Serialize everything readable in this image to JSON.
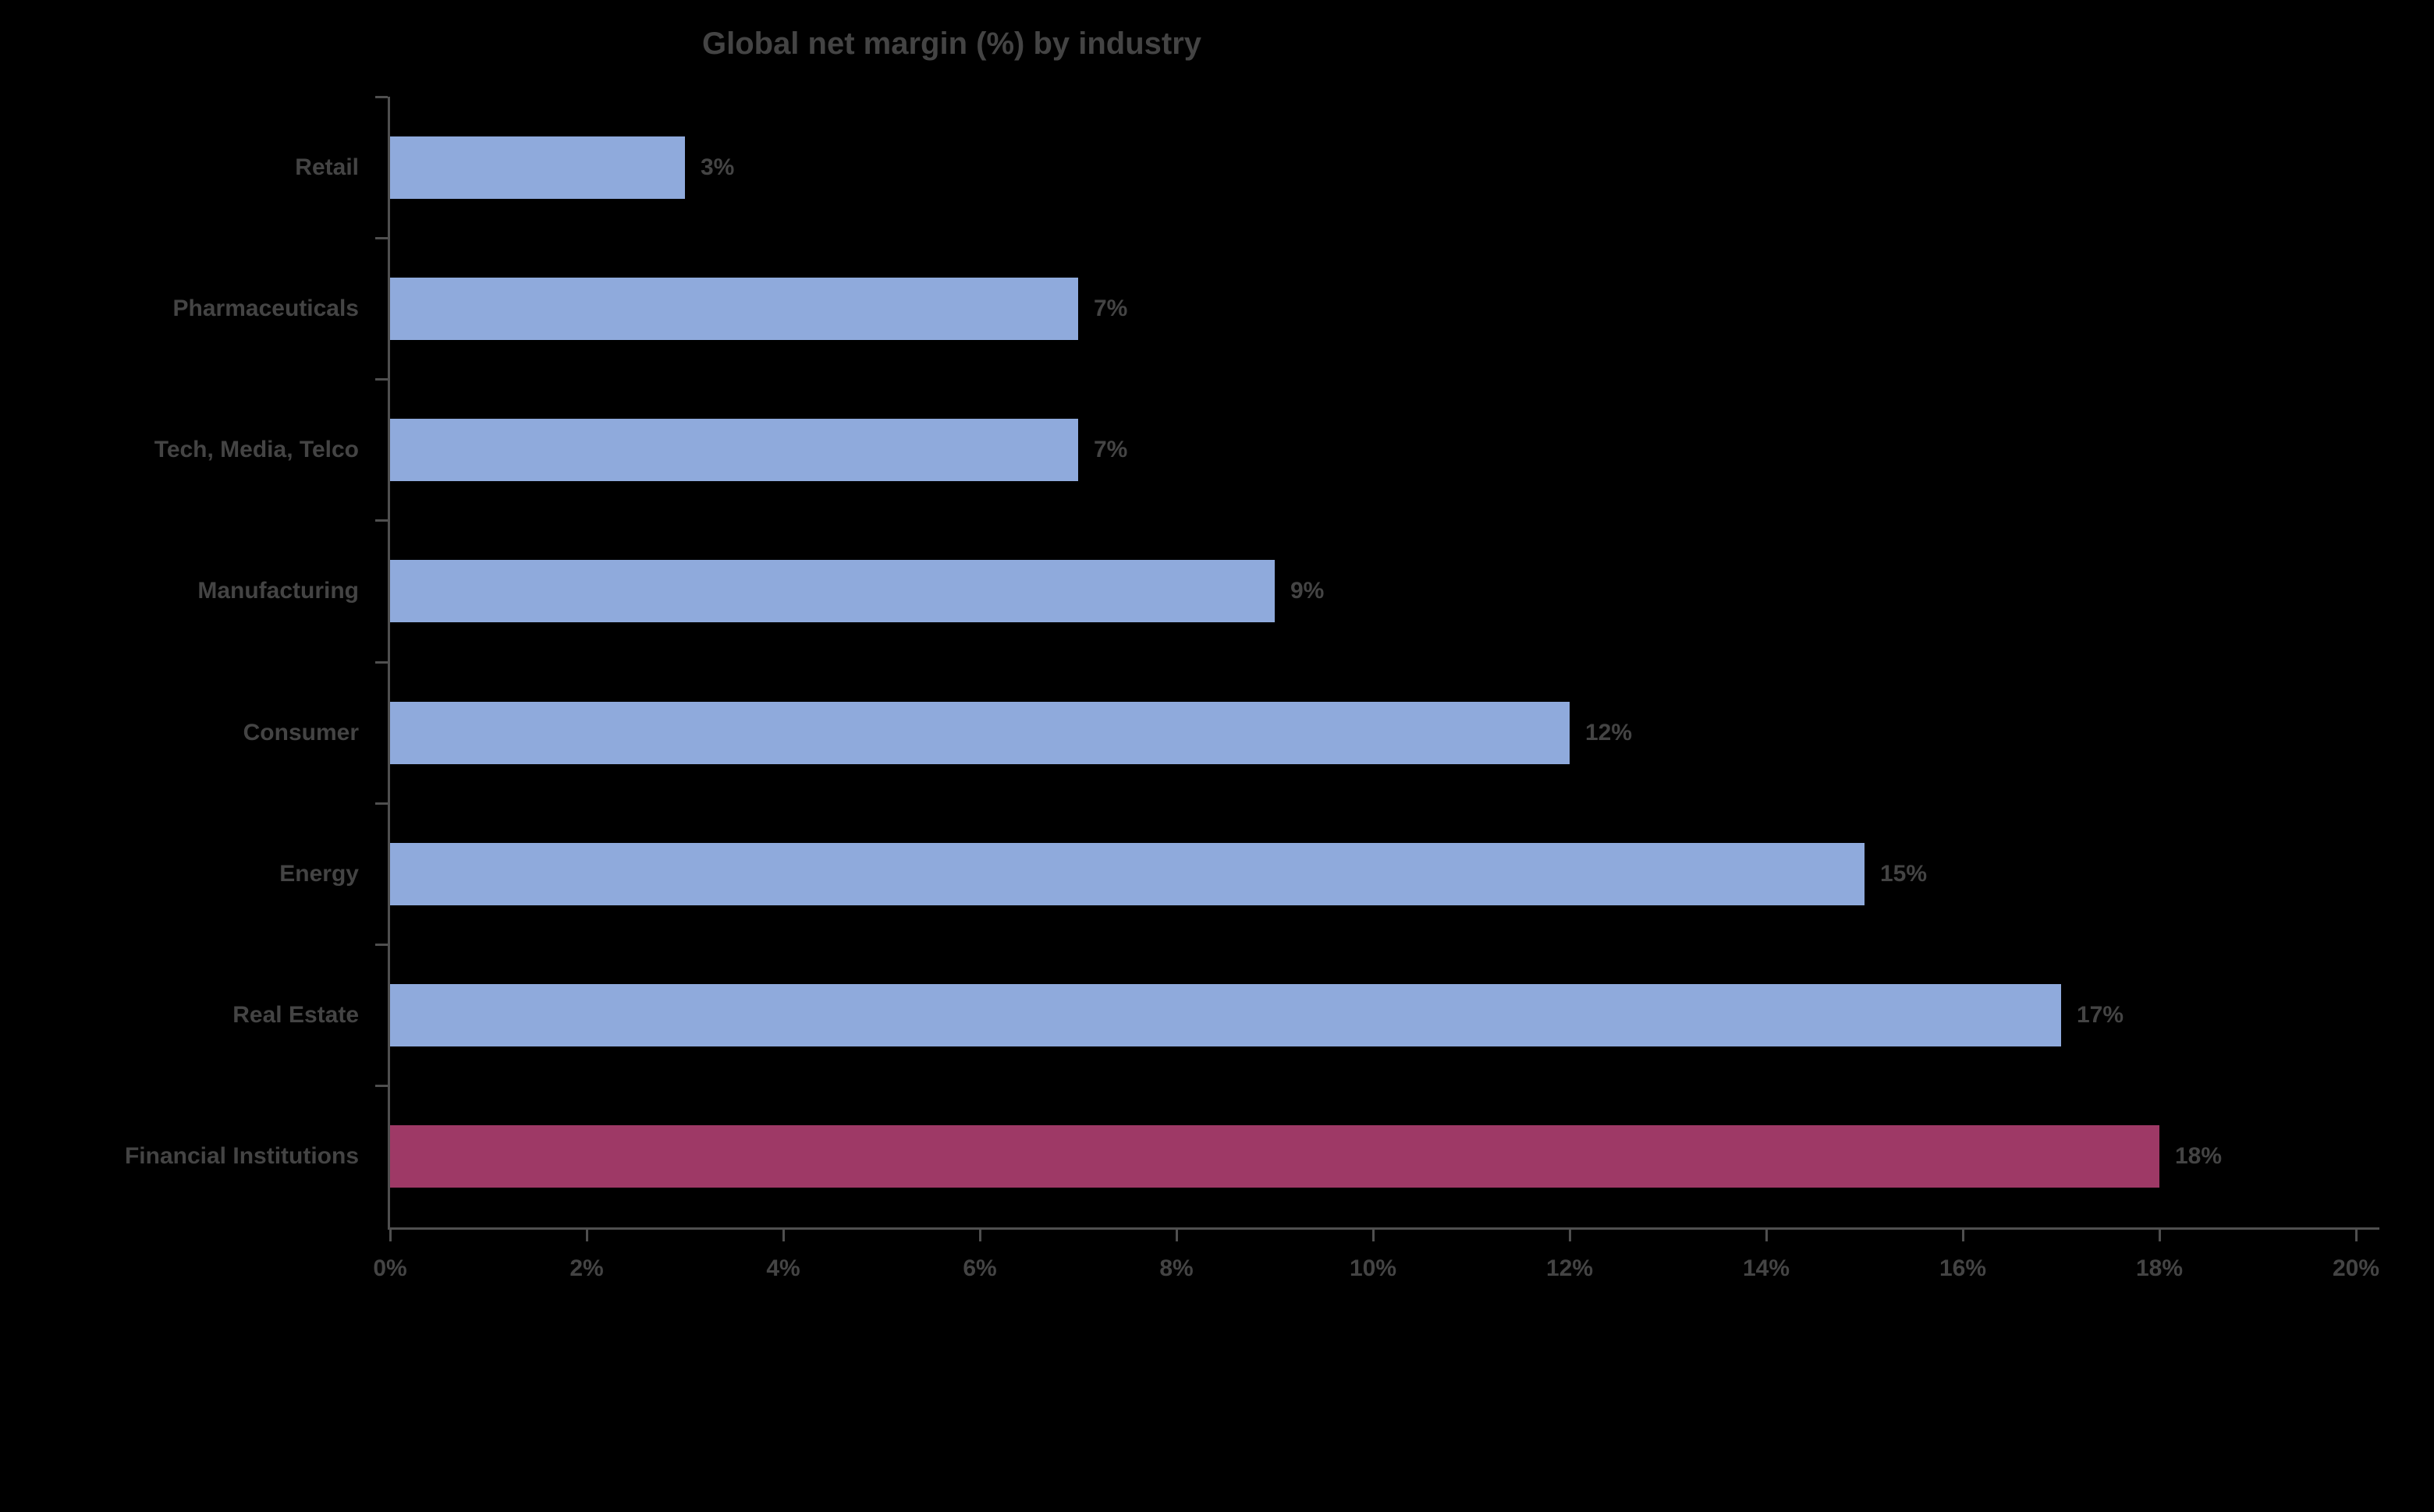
{
  "chart_data": {
    "type": "bar",
    "orientation": "horizontal",
    "title": "Global net margin (%) by industry",
    "categories": [
      "Retail",
      "Pharmaceuticals",
      "Tech, Media, Telco",
      "Manufacturing",
      "Consumer",
      "Energy",
      "Real Estate",
      "Financial Institutions"
    ],
    "values": [
      3,
      7,
      7,
      9,
      12,
      15,
      17,
      18
    ],
    "value_labels": [
      "3%",
      "7%",
      "7%",
      "9%",
      "12%",
      "15%",
      "17%",
      "18%"
    ],
    "xlabel": "",
    "ylabel": "",
    "xlim": [
      0,
      20
    ],
    "x_tick_values": [
      0,
      2,
      4,
      6,
      8,
      10,
      12,
      14,
      16,
      18,
      20
    ],
    "x_tick_labels": [
      "0%",
      "2%",
      "4%",
      "6%",
      "8%",
      "10%",
      "12%",
      "14%",
      "16%",
      "18%",
      "20%"
    ],
    "grid": false,
    "legend": false,
    "bar_color": "#8faadc",
    "highlight_color": "#9e3966",
    "highlight_index": 7,
    "background_color": "#000000",
    "text_color": "#444444",
    "axis_color": "#4f4f4f"
  }
}
